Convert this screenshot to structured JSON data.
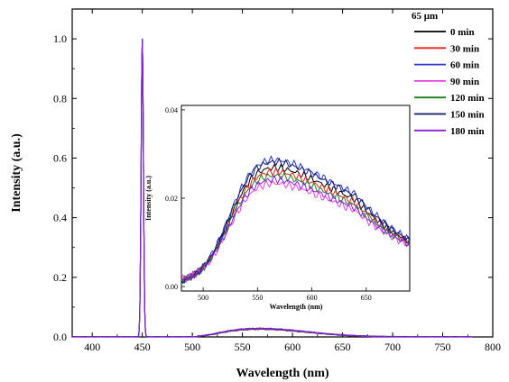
{
  "chart_data": {
    "type": "line",
    "title": "",
    "xlabel": "Wavelength (nm)",
    "ylabel": "Intensity (a.u.)",
    "xlim": [
      380,
      800
    ],
    "ylim": [
      0,
      1.1
    ],
    "xticks": [
      "400",
      "450",
      "500",
      "550",
      "600",
      "650",
      "700",
      "750",
      "800"
    ],
    "yticks": [
      "0.0",
      "0.2",
      "0.4",
      "0.6",
      "0.8",
      "1.0"
    ],
    "legend": {
      "title": "65 μm",
      "placement": "top-right",
      "entries": [
        {
          "name": "0 min",
          "color": "#000000"
        },
        {
          "name": "30 min",
          "color": "#e8231d"
        },
        {
          "name": "60 min",
          "color": "#2a36c9"
        },
        {
          "name": "90 min",
          "color": "#e840e0"
        },
        {
          "name": "120 min",
          "color": "#1d7d1d"
        },
        {
          "name": "150 min",
          "color": "#0f1a6b"
        },
        {
          "name": "180 min",
          "color": "#8a1fe0"
        }
      ]
    },
    "main_series": {
      "laser_peak": {
        "center": 450,
        "height": 1.0,
        "width_nm": 1.6
      },
      "emission_peak_max": 0.03,
      "emission_range": [
        505,
        780
      ],
      "x_end": 780
    },
    "inset": {
      "xlabel": "Wavelength (nm)",
      "ylabel": "Intensity (a.u.)",
      "xlim": [
        480,
        690
      ],
      "ylim": [
        -0.001,
        0.041
      ],
      "xticks": [
        "500",
        "550",
        "600",
        "650"
      ],
      "yticks": [
        "0.00",
        "0.02",
        "0.04"
      ],
      "series": [
        {
          "name": "0 min",
          "peak": 0.03,
          "start": 0.0004
        },
        {
          "name": "30 min",
          "peak": 0.029,
          "start": 0.0006
        },
        {
          "name": "60 min",
          "peak": 0.032,
          "start": 0.0003
        },
        {
          "name": "90 min",
          "peak": 0.026,
          "start": 0.0008
        },
        {
          "name": "120 min",
          "peak": 0.028,
          "start": 0.0005
        },
        {
          "name": "150 min",
          "peak": 0.0315,
          "start": 0.0002
        },
        {
          "name": "180 min",
          "peak": 0.027,
          "start": 0.0007
        }
      ],
      "shape": {
        "rise_center": 525,
        "rise_width": 13,
        "fall_center": 615,
        "fall_width": 44,
        "end_value": 0.006
      }
    }
  }
}
